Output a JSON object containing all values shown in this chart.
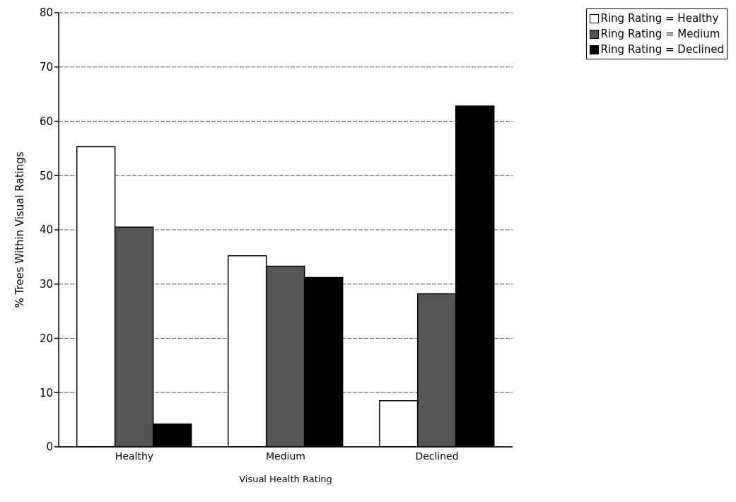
{
  "chart_data": {
    "type": "bar",
    "xlabel": "Visual Health Rating",
    "ylabel": "% Trees Within  Visual Ratings",
    "categories": [
      "Healthy",
      "Medium",
      "Declined"
    ],
    "series": [
      {
        "name": "Ring Rating = Healthy",
        "color": "#ffffff",
        "values": [
          55.3,
          35.2,
          8.5
        ]
      },
      {
        "name": "Ring Rating = Medium",
        "color": "#555555",
        "values": [
          40.5,
          33.3,
          28.2
        ]
      },
      {
        "name": "Ring Rating = Declined",
        "color": "#000000",
        "values": [
          4.2,
          31.2,
          62.8
        ]
      }
    ],
    "ylim": [
      0,
      80
    ],
    "yticks": [
      0,
      10,
      20,
      30,
      40,
      50,
      60,
      70,
      80
    ],
    "grid": "y",
    "legend": "top right"
  }
}
